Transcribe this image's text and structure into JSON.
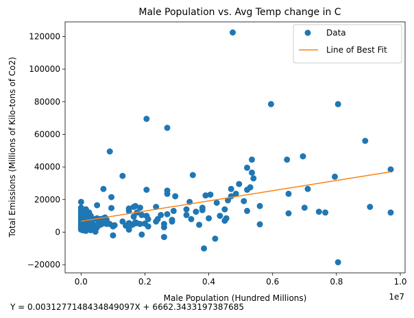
{
  "chart_data": {
    "type": "scatter",
    "title": "Male Population vs. Avg Temp change in C",
    "xlabel": "Male Population (Hundred Millions)",
    "ylabel": "Total Emissions (Millions of Kilo-tons of Co2)",
    "x_offset_label": "1e7",
    "equation": "Y = 0.003127714843484909​7X + 6662.3433197387685",
    "xlim": [
      -500000,
      10150000
    ],
    "ylim": [
      -25000,
      129000
    ],
    "x_ticks": [
      0,
      2000000,
      4000000,
      6000000,
      8000000,
      10000000
    ],
    "x_tick_labels": [
      "0.0",
      "0.2",
      "0.4",
      "0.6",
      "0.8",
      "1.0"
    ],
    "y_ticks": [
      -20000,
      0,
      20000,
      40000,
      60000,
      80000,
      100000,
      120000
    ],
    "y_tick_labels": [
      "−20000",
      "0",
      "20000",
      "40000",
      "60000",
      "80000",
      "100000",
      "120000"
    ],
    "grid": false,
    "legend_position": "top-right",
    "legend": [
      {
        "label": "Data",
        "marker": "dot"
      },
      {
        "label": "Line of Best Fit",
        "marker": "line"
      }
    ],
    "colors": {
      "data": "#1f77b4",
      "fit": "#ff7f0e"
    },
    "fit": {
      "slope": 0.0031277148434849097,
      "intercept": 6662.3433197387685,
      "x_range": [
        0,
        9700000
      ]
    },
    "series": [
      {
        "name": "Data",
        "points": [
          [
            0,
            18500
          ],
          [
            0,
            15000
          ],
          [
            0,
            14000
          ],
          [
            0,
            12500
          ],
          [
            0,
            11500
          ],
          [
            0,
            10000
          ],
          [
            0,
            9000
          ],
          [
            0,
            8000
          ],
          [
            0,
            7000
          ],
          [
            0,
            6000
          ],
          [
            0,
            5000
          ],
          [
            0,
            4000
          ],
          [
            0,
            3200
          ],
          [
            0,
            2500
          ],
          [
            0,
            2000
          ],
          [
            0,
            1500
          ],
          [
            50000,
            13000
          ],
          [
            50000,
            11000
          ],
          [
            50000,
            9000
          ],
          [
            50000,
            6000
          ],
          [
            50000,
            3000
          ],
          [
            50000,
            1200
          ],
          [
            100000,
            12500
          ],
          [
            100000,
            10000
          ],
          [
            100000,
            8000
          ],
          [
            100000,
            4500
          ],
          [
            100000,
            2500
          ],
          [
            100000,
            1000
          ],
          [
            150000,
            14000
          ],
          [
            150000,
            9000
          ],
          [
            150000,
            6500
          ],
          [
            150000,
            3000
          ],
          [
            150000,
            800
          ],
          [
            200000,
            11500
          ],
          [
            200000,
            7500
          ],
          [
            200000,
            5000
          ],
          [
            200000,
            2000
          ],
          [
            250000,
            12000
          ],
          [
            250000,
            8000
          ],
          [
            250000,
            4000
          ],
          [
            250000,
            1500
          ],
          [
            300000,
            10000
          ],
          [
            300000,
            7000
          ],
          [
            300000,
            3500
          ],
          [
            300000,
            1200
          ],
          [
            350000,
            5000
          ],
          [
            350000,
            2500
          ],
          [
            400000,
            8000
          ],
          [
            400000,
            4500
          ],
          [
            400000,
            2000
          ],
          [
            450000,
            4000
          ],
          [
            450000,
            1000
          ],
          [
            450000,
            300
          ],
          [
            500000,
            16500
          ],
          [
            500000,
            8500
          ],
          [
            500000,
            3000
          ],
          [
            550000,
            7000
          ],
          [
            550000,
            4800
          ],
          [
            600000,
            8000
          ],
          [
            600000,
            6000
          ],
          [
            600000,
            4500
          ],
          [
            650000,
            5000
          ],
          [
            700000,
            26500
          ],
          [
            700000,
            8500
          ],
          [
            700000,
            6000
          ],
          [
            750000,
            9000
          ],
          [
            750000,
            7500
          ],
          [
            800000,
            7500
          ],
          [
            800000,
            5000
          ],
          [
            900000,
            49500
          ],
          [
            900000,
            5000
          ],
          [
            950000,
            21500
          ],
          [
            950000,
            14800
          ],
          [
            1000000,
            -2000
          ],
          [
            1000000,
            3500
          ],
          [
            1050000,
            4200
          ],
          [
            1300000,
            34500
          ],
          [
            1300000,
            6500
          ],
          [
            1400000,
            4000
          ],
          [
            1500000,
            14500
          ],
          [
            1500000,
            13000
          ],
          [
            1500000,
            5500
          ],
          [
            1500000,
            3000
          ],
          [
            1500000,
            1500
          ],
          [
            1600000,
            4500
          ],
          [
            1650000,
            15500
          ],
          [
            1650000,
            9500
          ],
          [
            1650000,
            5000
          ],
          [
            1700000,
            16000
          ],
          [
            1700000,
            6000
          ],
          [
            1750000,
            12000
          ],
          [
            1750000,
            5500
          ],
          [
            1850000,
            15000
          ],
          [
            1850000,
            5000
          ],
          [
            1900000,
            -1500
          ],
          [
            1900000,
            10500
          ],
          [
            2000000,
            5200
          ],
          [
            2050000,
            69500
          ],
          [
            2050000,
            26000
          ],
          [
            2050000,
            10000
          ],
          [
            2100000,
            8000
          ],
          [
            2100000,
            3500
          ],
          [
            2350000,
            15500
          ],
          [
            2350000,
            6500
          ],
          [
            2400000,
            8000
          ],
          [
            2500000,
            10500
          ],
          [
            2600000,
            -3000
          ],
          [
            2600000,
            3000
          ],
          [
            2600000,
            5000
          ],
          [
            2700000,
            64000
          ],
          [
            2700000,
            25500
          ],
          [
            2700000,
            23500
          ],
          [
            2700000,
            11000
          ],
          [
            2850000,
            7500
          ],
          [
            2850000,
            6500
          ],
          [
            2900000,
            13000
          ],
          [
            2950000,
            22000
          ],
          [
            3300000,
            14000
          ],
          [
            3300000,
            10500
          ],
          [
            3400000,
            18500
          ],
          [
            3450000,
            8000
          ],
          [
            3500000,
            35000
          ],
          [
            3600000,
            12500
          ],
          [
            3700000,
            4500
          ],
          [
            3800000,
            15000
          ],
          [
            3800000,
            13500
          ],
          [
            3850000,
            -10000
          ],
          [
            3900000,
            22500
          ],
          [
            4000000,
            8500
          ],
          [
            4050000,
            23000
          ],
          [
            4200000,
            -4000
          ],
          [
            4250000,
            18000
          ],
          [
            4350000,
            10000
          ],
          [
            4500000,
            14000
          ],
          [
            4500000,
            7000
          ],
          [
            4550000,
            8500
          ],
          [
            4600000,
            19500
          ],
          [
            4700000,
            26500
          ],
          [
            4700000,
            22000
          ],
          [
            4750000,
            122500
          ],
          [
            4850000,
            23500
          ],
          [
            4950000,
            29500
          ],
          [
            5100000,
            19000
          ],
          [
            5200000,
            39500
          ],
          [
            5200000,
            26000
          ],
          [
            5200000,
            13000
          ],
          [
            5300000,
            27500
          ],
          [
            5350000,
            44500
          ],
          [
            5350000,
            36500
          ],
          [
            5400000,
            33000
          ],
          [
            5600000,
            16000
          ],
          [
            5600000,
            4800
          ],
          [
            5950000,
            78500
          ],
          [
            6450000,
            44500
          ],
          [
            6500000,
            23500
          ],
          [
            6500000,
            11500
          ],
          [
            6950000,
            46500
          ],
          [
            7000000,
            15000
          ],
          [
            7100000,
            26500
          ],
          [
            7450000,
            12500
          ],
          [
            7650000,
            12000
          ],
          [
            7950000,
            34000
          ],
          [
            8050000,
            78500
          ],
          [
            8050000,
            -18500
          ],
          [
            8900000,
            56000
          ],
          [
            9050000,
            15500
          ],
          [
            9700000,
            38500
          ],
          [
            9700000,
            12000
          ]
        ]
      }
    ]
  }
}
